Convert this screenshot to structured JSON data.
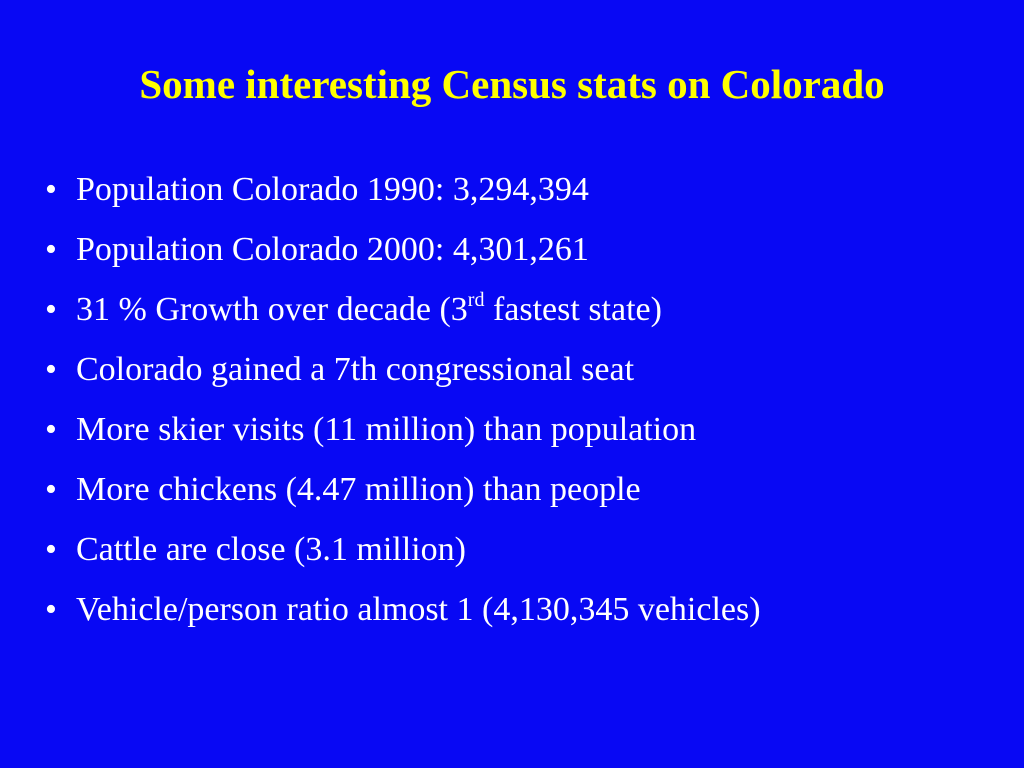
{
  "header": {
    "title": "Some interesting Census stats on Colorado"
  },
  "bullets": [
    {
      "text": "Population Colorado 1990: 3,294,394"
    },
    {
      "text": "Population Colorado 2000: 4,301,261"
    },
    {
      "parts": [
        "31 % Growth over decade (3",
        "rd",
        " fastest state)"
      ]
    },
    {
      "text": "Colorado gained a 7th congressional seat"
    },
    {
      "text": "More skier visits (11 million) than population"
    },
    {
      "text": "More chickens (4.47 million) than people"
    },
    {
      "text": "Cattle are close (3.1 million)"
    },
    {
      "text": "Vehicle/person ratio almost 1 (4,130,345 vehicles)"
    }
  ]
}
